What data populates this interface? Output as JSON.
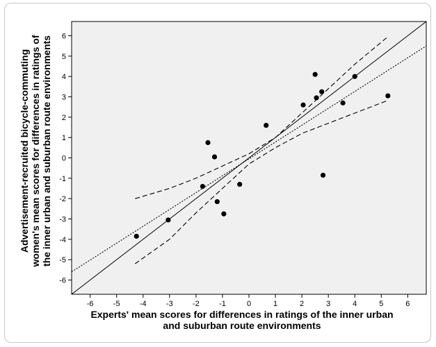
{
  "chart_data": {
    "type": "scatter",
    "xlabel_lines": [
      "Experts' mean scores for differences in ratings of the inner urban",
      "and suburban route environments"
    ],
    "ylabel_lines": [
      "Advertisement-recruited bicycle-commuting",
      "women's mean scores for differences in ratings of",
      "the inner urban and suburban route environments"
    ],
    "xlim": [
      -6.7,
      6.7
    ],
    "ylim": [
      -6.7,
      6.7
    ],
    "xticks": [
      -6,
      -5,
      -4,
      -3,
      -2,
      -1,
      0,
      1,
      2,
      3,
      4,
      5,
      6
    ],
    "yticks": [
      -6,
      -5,
      -4,
      -3,
      -2,
      -1,
      0,
      1,
      2,
      3,
      4,
      5,
      6
    ],
    "plot_background": "#f0f0f0",
    "points": [
      {
        "x": -4.25,
        "y": -3.85
      },
      {
        "x": -3.05,
        "y": -3.05
      },
      {
        "x": -1.75,
        "y": -1.4
      },
      {
        "x": -1.55,
        "y": 0.75
      },
      {
        "x": -1.3,
        "y": 0.05
      },
      {
        "x": -1.2,
        "y": -2.15
      },
      {
        "x": -0.95,
        "y": -2.75
      },
      {
        "x": -0.35,
        "y": -1.3
      },
      {
        "x": 0.65,
        "y": 1.6
      },
      {
        "x": 2.05,
        "y": 2.6
      },
      {
        "x": 2.5,
        "y": 4.1
      },
      {
        "x": 2.55,
        "y": 2.95
      },
      {
        "x": 2.75,
        "y": 3.25
      },
      {
        "x": 2.8,
        "y": -0.85
      },
      {
        "x": 3.55,
        "y": 2.7
      },
      {
        "x": 4.0,
        "y": 4.0
      },
      {
        "x": 5.25,
        "y": 3.05
      }
    ],
    "identity_line": {
      "style": "solid",
      "x": [
        -6.7,
        6.7
      ],
      "y": [
        -6.7,
        6.7
      ]
    },
    "fit_line": {
      "style": "dotted",
      "x": [
        -6.7,
        6.7
      ],
      "y": [
        -5.6,
        5.5
      ]
    },
    "ci_upper": {
      "style": "dashed",
      "x": [
        -4.3,
        -3.0,
        -2.0,
        -1.0,
        0.0,
        1.0,
        2.0,
        3.0,
        4.0,
        5.2
      ],
      "y": [
        -2.0,
        -1.5,
        -1.0,
        -0.4,
        0.2,
        1.0,
        2.2,
        3.4,
        4.6,
        5.9
      ]
    },
    "ci_lower": {
      "style": "dashed",
      "x": [
        -4.3,
        -3.0,
        -2.0,
        -1.0,
        0.0,
        1.0,
        2.0,
        3.0,
        4.0,
        5.2
      ],
      "y": [
        -5.2,
        -4.0,
        -2.7,
        -1.5,
        -0.3,
        0.5,
        1.2,
        1.7,
        2.2,
        2.8
      ]
    }
  }
}
